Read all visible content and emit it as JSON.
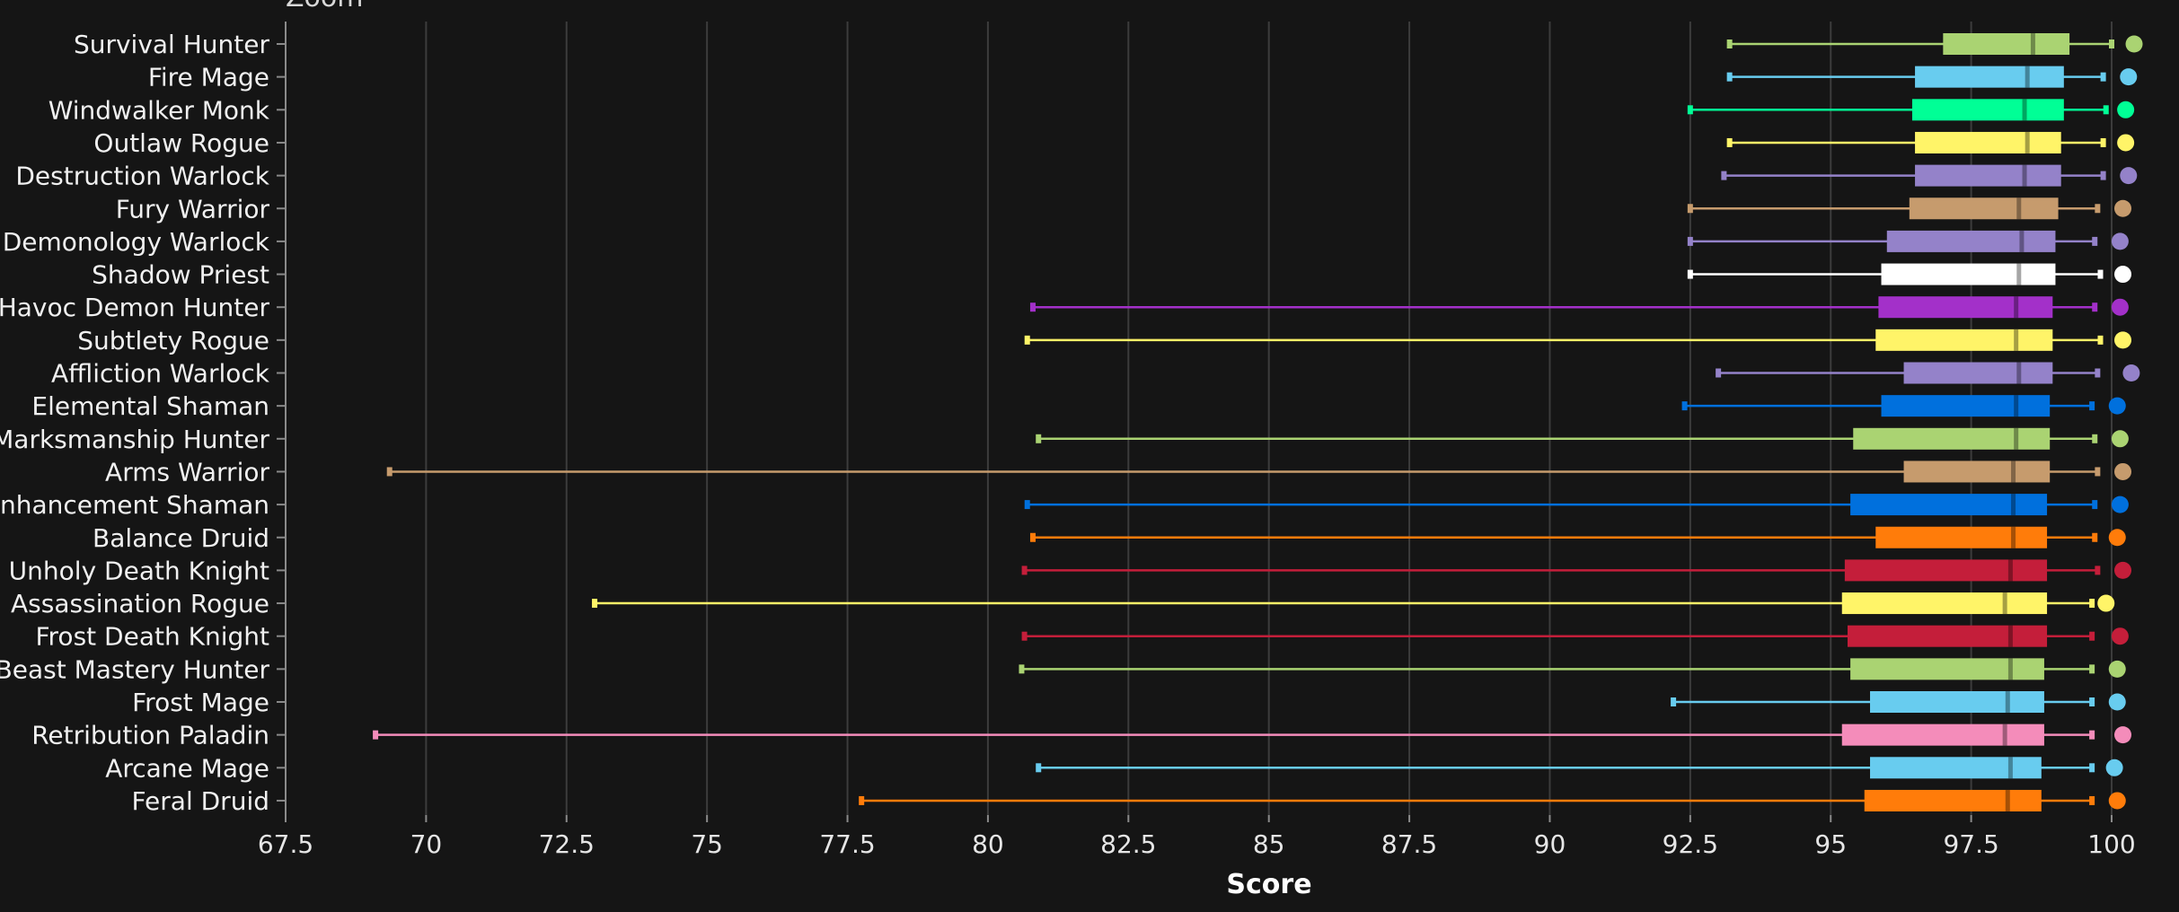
{
  "zoom_label": "Zoom",
  "chart_data": {
    "type": "boxplot",
    "xlabel": "Score",
    "ylabel": "",
    "xlim": [
      67.5,
      100.5
    ],
    "x_ticks": [
      "67.5",
      "70",
      "72.5",
      "75",
      "77.5",
      "80",
      "82.5",
      "85",
      "87.5",
      "90",
      "92.5",
      "95",
      "97.5",
      "100"
    ],
    "grid": "vertical",
    "categories": [
      "Survival Hunter",
      "Fire Mage",
      "Windwalker Monk",
      "Outlaw Rogue",
      "Destruction Warlock",
      "Fury Warrior",
      "Demonology Warlock",
      "Shadow Priest",
      "Havoc Demon Hunter",
      "Subtlety Rogue",
      "Affliction Warlock",
      "Elemental Shaman",
      "Marksmanship Hunter",
      "Arms Warrior",
      "Enhancement Shaman",
      "Balance Druid",
      "Unholy Death Knight",
      "Assassination Rogue",
      "Frost Death Knight",
      "Beast Mastery Hunter",
      "Frost Mage",
      "Retribution Paladin",
      "Arcane Mage",
      "Feral Druid"
    ],
    "series": [
      {
        "min": 93.2,
        "q1": 97.0,
        "median": 98.6,
        "q3": 99.25,
        "max": 100.0,
        "outlier": 100.4,
        "color": "#aad372"
      },
      {
        "min": 93.2,
        "q1": 96.5,
        "median": 98.5,
        "q3": 99.15,
        "max": 99.85,
        "outlier": 100.3,
        "color": "#68ccef"
      },
      {
        "min": 92.5,
        "q1": 96.45,
        "median": 98.45,
        "q3": 99.15,
        "max": 99.9,
        "outlier": 100.25,
        "color": "#00ff96"
      },
      {
        "min": 93.2,
        "q1": 96.5,
        "median": 98.5,
        "q3": 99.1,
        "max": 99.85,
        "outlier": 100.25,
        "color": "#fff468"
      },
      {
        "min": 93.1,
        "q1": 96.5,
        "median": 98.45,
        "q3": 99.1,
        "max": 99.85,
        "outlier": 100.3,
        "color": "#9482c9"
      },
      {
        "min": 92.5,
        "q1": 96.4,
        "median": 98.35,
        "q3": 99.05,
        "max": 99.75,
        "outlier": 100.2,
        "color": "#c69b6d"
      },
      {
        "min": 92.5,
        "q1": 96.0,
        "median": 98.4,
        "q3": 99.0,
        "max": 99.7,
        "outlier": 100.15,
        "color": "#9482c9"
      },
      {
        "min": 92.5,
        "q1": 95.9,
        "median": 98.35,
        "q3": 99.0,
        "max": 99.8,
        "outlier": 100.2,
        "color": "#ffffff"
      },
      {
        "min": 80.8,
        "q1": 95.85,
        "median": 98.3,
        "q3": 98.95,
        "max": 99.7,
        "outlier": 100.15,
        "color": "#a330c9"
      },
      {
        "min": 80.7,
        "q1": 95.8,
        "median": 98.3,
        "q3": 98.95,
        "max": 99.8,
        "outlier": 100.2,
        "color": "#fff468"
      },
      {
        "min": 93.0,
        "q1": 96.3,
        "median": 98.35,
        "q3": 98.95,
        "max": 99.75,
        "outlier": 100.35,
        "color": "#9482c9"
      },
      {
        "min": 92.4,
        "q1": 95.9,
        "median": 98.3,
        "q3": 98.9,
        "max": 99.65,
        "outlier": 100.1,
        "color": "#0070dd"
      },
      {
        "min": 80.9,
        "q1": 95.4,
        "median": 98.3,
        "q3": 98.9,
        "max": 99.7,
        "outlier": 100.15,
        "color": "#aad372"
      },
      {
        "min": 69.35,
        "q1": 96.3,
        "median": 98.25,
        "q3": 98.9,
        "max": 99.75,
        "outlier": 100.2,
        "color": "#c69b6d"
      },
      {
        "min": 80.7,
        "q1": 95.35,
        "median": 98.25,
        "q3": 98.85,
        "max": 99.7,
        "outlier": 100.15,
        "color": "#0070dd"
      },
      {
        "min": 80.8,
        "q1": 95.8,
        "median": 98.25,
        "q3": 98.85,
        "max": 99.7,
        "outlier": 100.1,
        "color": "#ff7c0a"
      },
      {
        "min": 80.65,
        "q1": 95.25,
        "median": 98.2,
        "q3": 98.85,
        "max": 99.75,
        "outlier": 100.2,
        "color": "#c41e3a"
      },
      {
        "min": 73.0,
        "q1": 95.2,
        "median": 98.1,
        "q3": 98.85,
        "max": 99.65,
        "outlier": 99.9,
        "color": "#fff468"
      },
      {
        "min": 80.65,
        "q1": 95.3,
        "median": 98.2,
        "q3": 98.85,
        "max": 99.65,
        "outlier": 100.15,
        "color": "#c41e3a"
      },
      {
        "min": 80.6,
        "q1": 95.35,
        "median": 98.2,
        "q3": 98.8,
        "max": 99.65,
        "outlier": 100.1,
        "color": "#aad372"
      },
      {
        "min": 92.2,
        "q1": 95.7,
        "median": 98.15,
        "q3": 98.8,
        "max": 99.65,
        "outlier": 100.1,
        "color": "#68ccef"
      },
      {
        "min": 69.1,
        "q1": 95.2,
        "median": 98.1,
        "q3": 98.8,
        "max": 99.65,
        "outlier": 100.2,
        "color": "#f48cba"
      },
      {
        "min": 80.9,
        "q1": 95.7,
        "median": 98.2,
        "q3": 98.75,
        "max": 99.65,
        "outlier": 100.05,
        "color": "#68ccef"
      },
      {
        "min": 77.75,
        "q1": 95.6,
        "median": 98.15,
        "q3": 98.75,
        "max": 99.65,
        "outlier": 100.1,
        "color": "#ff7c0a"
      }
    ]
  }
}
